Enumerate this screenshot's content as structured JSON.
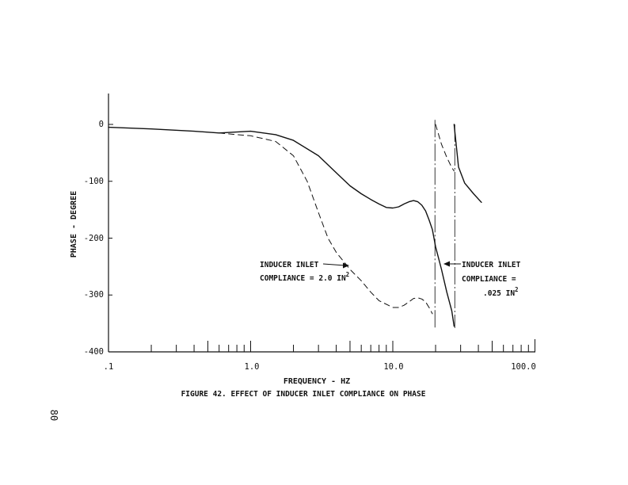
{
  "chart_data": {
    "type": "line",
    "xscale": "log",
    "xlim": [
      0.1,
      100
    ],
    "ylim": [
      -400,
      50
    ],
    "xlabel": "FREQUENCY - HZ",
    "ylabel": "PHASE - DEGREE",
    "x_tick_labels": [
      ".1",
      "1.0",
      "10.0",
      "100.0"
    ],
    "y_tick_labels": [
      "0",
      "-100",
      "-200",
      "-300",
      "-400"
    ],
    "y_ticks": [
      0,
      -100,
      -200,
      -300,
      -400
    ],
    "grid": false,
    "series": [
      {
        "name": "INDUCER INLET COMPLIANCE = .025 IN2",
        "style": "solid",
        "segments": [
          [
            [
              0.1,
              -5
            ],
            [
              0.2,
              -8
            ],
            [
              0.4,
              -12
            ],
            [
              0.6,
              -15
            ],
            [
              1.0,
              -12
            ],
            [
              1.5,
              -18
            ],
            [
              2.0,
              -28
            ],
            [
              3.0,
              -55
            ],
            [
              4.0,
              -85
            ],
            [
              5.0,
              -108
            ],
            [
              6.0,
              -122
            ],
            [
              7.0,
              -132
            ],
            [
              8.0,
              -140
            ],
            [
              9.0,
              -146
            ],
            [
              10.0,
              -147
            ],
            [
              11.0,
              -145
            ],
            [
              12.0,
              -140
            ],
            [
              13.0,
              -136
            ],
            [
              14.0,
              -134
            ],
            [
              15.0,
              -136
            ],
            [
              16.0,
              -142
            ],
            [
              17.0,
              -152
            ],
            [
              18.0,
              -168
            ],
            [
              19.0,
              -185
            ],
            [
              20.0,
              -215
            ],
            [
              22.0,
              -255
            ],
            [
              24.0,
              -295
            ],
            [
              26.0,
              -328
            ],
            [
              27.0,
              -355
            ]
          ],
          [
            [
              27.0,
              0
            ],
            [
              29.0,
              -75
            ],
            [
              32.0,
              -103
            ],
            [
              37.0,
              -122
            ],
            [
              42.0,
              -137
            ]
          ]
        ]
      },
      {
        "name": "INDUCER INLET COMPLIANCE = 2.0 IN2",
        "style": "dashed",
        "segments": [
          [
            [
              0.6,
              -15
            ],
            [
              0.8,
              -18
            ],
            [
              1.0,
              -20
            ],
            [
              1.5,
              -30
            ],
            [
              2.0,
              -55
            ],
            [
              2.5,
              -100
            ],
            [
              3.0,
              -155
            ],
            [
              3.5,
              -200
            ],
            [
              4.0,
              -225
            ],
            [
              5.0,
              -255
            ],
            [
              6.0,
              -275
            ],
            [
              7.0,
              -295
            ],
            [
              8.0,
              -310
            ],
            [
              10.0,
              -322
            ],
            [
              11.0,
              -322
            ],
            [
              12.0,
              -318
            ],
            [
              13.0,
              -312
            ],
            [
              14.0,
              -306
            ],
            [
              15.0,
              -305
            ],
            [
              16.0,
              -307
            ],
            [
              17.0,
              -312
            ],
            [
              18.0,
              -322
            ],
            [
              19.0,
              -333
            ]
          ],
          [
            [
              20.0,
              0
            ],
            [
              22.0,
              -35
            ],
            [
              24.0,
              -58
            ],
            [
              26.0,
              -76
            ],
            [
              27.0,
              -82
            ]
          ]
        ]
      }
    ],
    "verticals": [
      {
        "x": 19.8,
        "from": 8,
        "to": -358
      },
      {
        "x": 27.3,
        "from": 0,
        "to": -358
      }
    ],
    "annotations": [
      {
        "lines": [
          "INDUCER INLET",
          "COMPLIANCE = 2.0 IN"
        ],
        "superscript": "2",
        "arrow": "right"
      },
      {
        "lines": [
          "INDUCER INLET",
          "COMPLIANCE =",
          ".025 IN"
        ],
        "superscript": "2",
        "arrow": "left"
      }
    ],
    "caption": "FIGURE 42.  EFFECT OF INDUCER INLET COMPLIANCE ON PHASE"
  },
  "page_number": "80"
}
